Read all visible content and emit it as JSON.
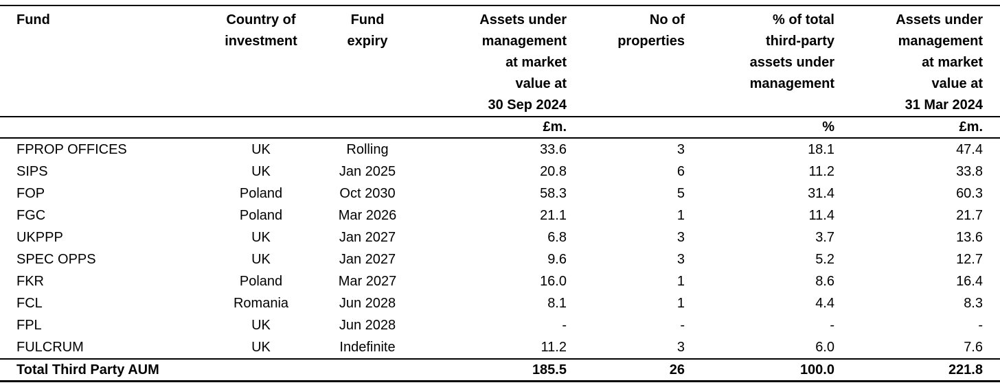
{
  "table": {
    "title_semantic": "Third party funds under management",
    "columns": [
      {
        "label": "Fund",
        "unit": ""
      },
      {
        "label": "Country of\ninvestment",
        "unit": ""
      },
      {
        "label": "Fund\nexpiry",
        "unit": ""
      },
      {
        "label": "Assets under\nmanagement\nat market\nvalue at\n30 Sep 2024",
        "unit": "£m."
      },
      {
        "label": "No of\nproperties",
        "unit": ""
      },
      {
        "label": "% of total\nthird-party\nassets under\nmanagement",
        "unit": "%"
      },
      {
        "label": "Assets under\nmanagement\nat market\nvalue at\n31 Mar 2024",
        "unit": "£m."
      }
    ],
    "rows": [
      [
        "FPROP OFFICES",
        "UK",
        "Rolling",
        "33.6",
        "3",
        "18.1",
        "47.4"
      ],
      [
        "SIPS",
        "UK",
        "Jan 2025",
        "20.8",
        "6",
        "11.2",
        "33.8"
      ],
      [
        "FOP",
        "Poland",
        "Oct 2030",
        "58.3",
        "5",
        "31.4",
        "60.3"
      ],
      [
        "FGC",
        "Poland",
        "Mar 2026",
        "21.1",
        "1",
        "11.4",
        "21.7"
      ],
      [
        "UKPPP",
        "UK",
        "Jan 2027",
        "6.8",
        "3",
        "3.7",
        "13.6"
      ],
      [
        "SPEC OPPS",
        "UK",
        "Jan 2027",
        "9.6",
        "3",
        "5.2",
        "12.7"
      ],
      [
        "FKR",
        "Poland",
        "Mar 2027",
        "16.0",
        "1",
        "8.6",
        "16.4"
      ],
      [
        "FCL",
        "Romania",
        "Jun 2028",
        "8.1",
        "1",
        "4.4",
        "8.3"
      ],
      [
        "FPL",
        "UK",
        "Jun 2028",
        "-",
        "-",
        "-",
        "-"
      ],
      [
        "FULCRUM",
        "UK",
        "Indefinite",
        "11.2",
        "3",
        "6.0",
        "7.6"
      ]
    ],
    "total_row": [
      "Total Third Party AUM",
      "",
      "",
      "185.5",
      "26",
      "100.0",
      "221.8"
    ]
  },
  "colors": {
    "text": "#000000",
    "background": "#ffffff",
    "rule": "#000000"
  }
}
